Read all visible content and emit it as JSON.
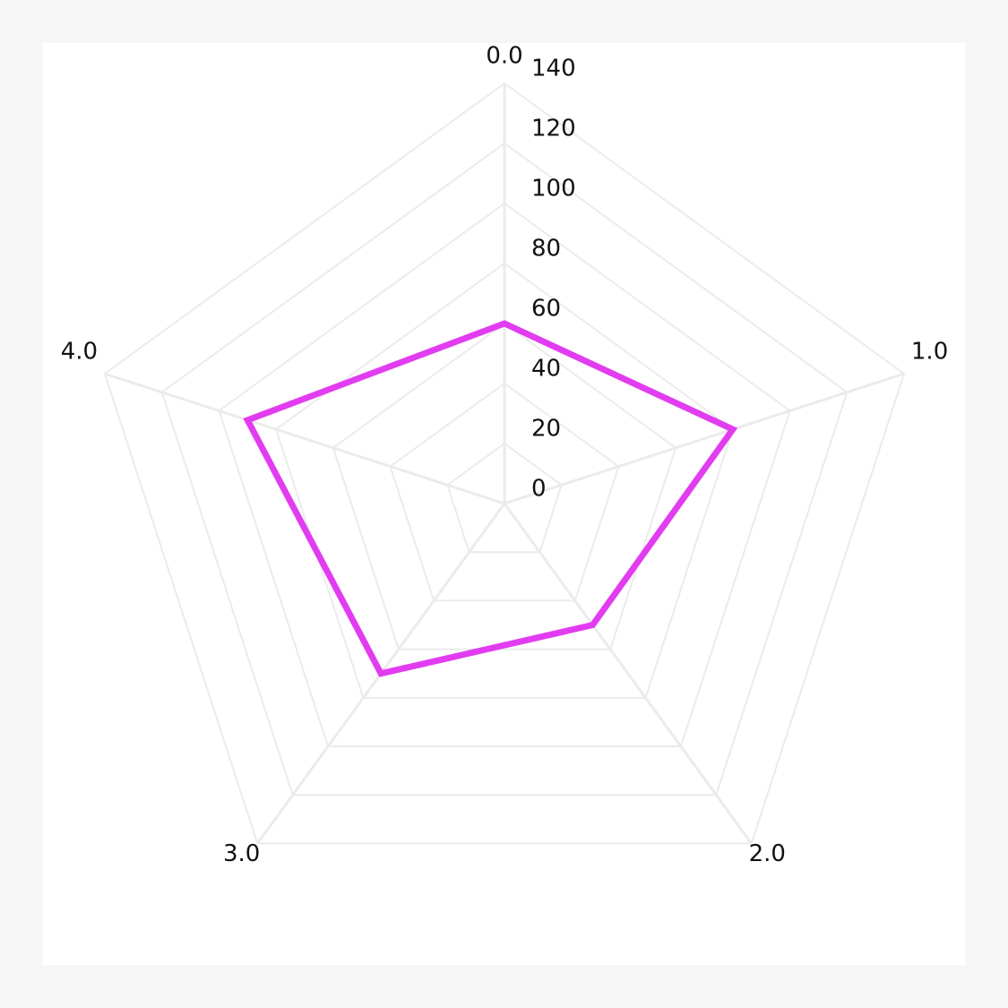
{
  "chart_data": {
    "type": "radar",
    "categories": [
      "0.0",
      "1.0",
      "2.0",
      "3.0",
      "4.0"
    ],
    "series": [
      {
        "color": "#e23cf0",
        "values": [
          60,
          80,
          50,
          70,
          90
        ]
      }
    ],
    "rlim": [
      0,
      140
    ],
    "rticks": [
      0,
      20,
      40,
      60,
      80,
      100,
      120,
      140
    ],
    "grid": true
  }
}
